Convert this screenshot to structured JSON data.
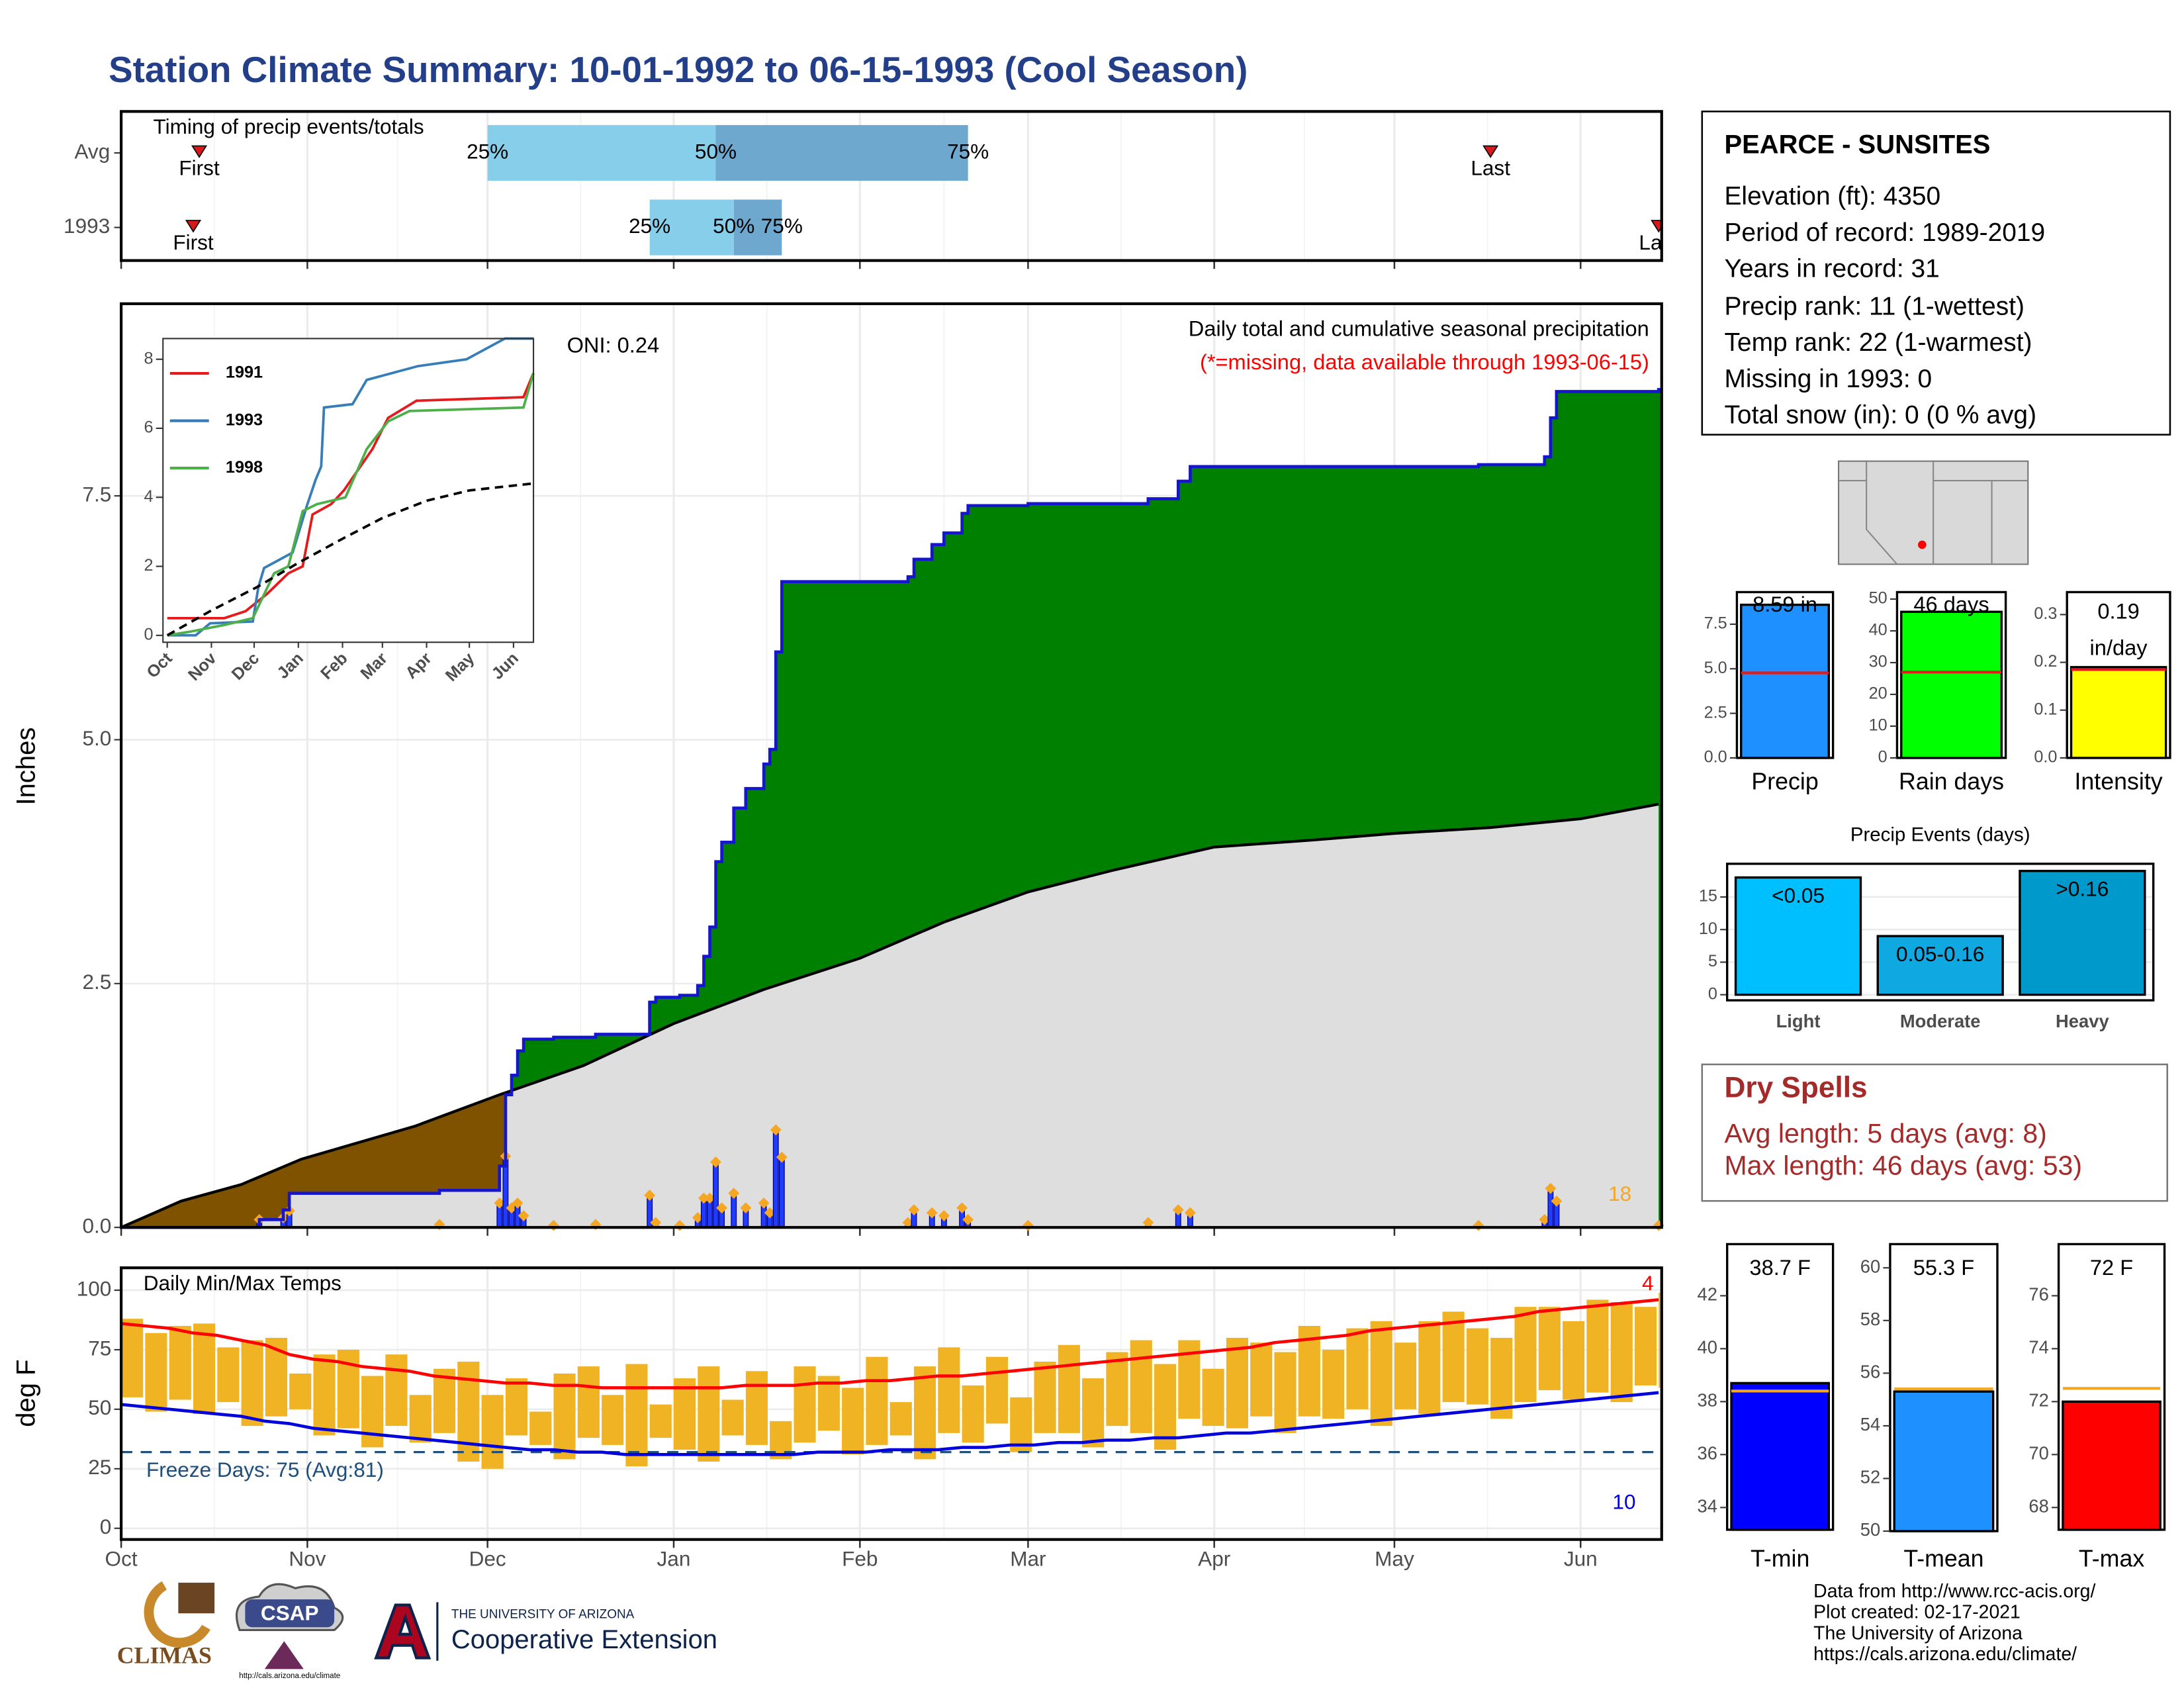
{
  "page_title": "Station Climate Summary: 10-01-1992 to 06-15-1993 (Cool Season)",
  "station": {
    "title": "PEARCE - SUNSITES",
    "lines": [
      "Elevation (ft): 4350",
      "Period of record: 1989-2019",
      "Years in record: 31",
      "Precip rank: 11 (1-wettest)",
      "Temp rank: 22 (1-warmest)",
      "Missing in 1993: 0",
      "Total snow (in): 0 (0 % avg)"
    ]
  },
  "dry_spells": {
    "title": "Dry Spells",
    "lines": [
      "Avg length: 5 days (avg: 8)",
      "Max length: 46 days (avg: 53)"
    ]
  },
  "footer": {
    "credits": [
      "Data from http://www.rcc-acis.org/",
      "Plot created: 02-17-2021",
      "The University of Arizona",
      "https://cals.arizona.edu/climate/"
    ],
    "logos": [
      "CLIMAS",
      "CSAP",
      "http://cals.arizona.edu/climate",
      "THE UNIVERSITY OF ARIZONA",
      "Cooperative Extension"
    ]
  },
  "chart_data": [
    {
      "type": "timing",
      "title": "Timing of precip events/totals",
      "categories": [
        "Avg",
        "1993"
      ],
      "first": [
        13,
        12
      ],
      "p25": [
        61,
        88
      ],
      "p50": [
        99,
        102
      ],
      "p75": [
        141,
        110
      ],
      "last": [
        228,
        256
      ],
      "first_label": "First",
      "last_label": "Last",
      "p25_label": "25%",
      "p50_label": "50%",
      "p75_label": "75%",
      "colors": [
        "#87ceeb",
        "#6fa8cf"
      ],
      "xlim": [
        0,
        256.5
      ]
    },
    {
      "type": "cumulative_precip",
      "title": "Daily total and cumulative seasonal precipitation",
      "subtitle": "(*=missing, data available through 1993-06-15)",
      "annotation": "ONI: 0.24",
      "count": 18,
      "ylabel": "Inches",
      "xlim": [
        0,
        256.5
      ],
      "ylim": [
        0,
        9.47
      ],
      "yticks": [
        {
          "value": 0,
          "label": "0.0"
        },
        2.5,
        {
          "value": 5,
          "label": "5.0"
        },
        7.5
      ],
      "grid": true,
      "daily": {
        "color": "#1f3cff",
        "x": [
          23,
          27,
          28,
          53,
          63,
          64,
          65,
          66,
          67,
          72,
          79,
          88,
          89,
          93,
          96,
          97,
          98,
          99,
          100,
          102,
          104,
          107,
          108,
          109,
          110,
          131,
          132,
          135,
          137,
          140,
          141,
          151,
          171,
          176,
          178,
          226,
          237,
          238,
          239,
          256
        ],
        "values": [
          0.08,
          0.1,
          0.17,
          0.03,
          0.25,
          0.73,
          0.2,
          0.25,
          0.12,
          0.02,
          0.03,
          0.33,
          0.05,
          0.02,
          0.1,
          0.3,
          0.3,
          0.67,
          0.2,
          0.35,
          0.2,
          0.25,
          0.15,
          1.0,
          0.72,
          0.05,
          0.18,
          0.15,
          0.12,
          0.2,
          0.08,
          0.02,
          0.05,
          0.18,
          0.15,
          0.02,
          0.08,
          0.4,
          0.27,
          0.02
        ]
      },
      "average": {
        "color": "#000000",
        "x": [
          0,
          10,
          20,
          30,
          49,
          63,
          77,
          92,
          107,
          123,
          137,
          151,
          165,
          182,
          198,
          212,
          228,
          243,
          256
        ],
        "values": [
          0,
          0.27,
          0.44,
          0.7,
          1.04,
          1.36,
          1.66,
          2.09,
          2.44,
          2.76,
          3.13,
          3.44,
          3.66,
          3.9,
          3.97,
          4.04,
          4.1,
          4.19,
          4.34
        ]
      },
      "colors": {
        "above": "#008000",
        "below": "#7f5200",
        "base": "#dedede",
        "line": "#1515d0",
        "marker": "#f5a623"
      }
    },
    {
      "type": "line",
      "xlim": [
        -3,
        257
      ],
      "ylim": [
        -0.2,
        8.6
      ],
      "yticks": [
        0,
        2,
        4,
        6,
        8
      ],
      "xticks": [
        {
          "value": 0,
          "label": "Oct"
        },
        {
          "value": 31,
          "label": "Nov"
        },
        {
          "value": 61,
          "label": "Dec"
        },
        {
          "value": 92,
          "label": "Jan"
        },
        {
          "value": 123,
          "label": "Feb"
        },
        {
          "value": 151,
          "label": "Mar"
        },
        {
          "value": 182,
          "label": "Apr"
        },
        {
          "value": 212,
          "label": "May"
        },
        {
          "value": 243,
          "label": "Jun"
        }
      ],
      "series": [
        {
          "name": "1991",
          "color": "#e41a1c",
          "x": [
            0,
            40,
            55,
            70,
            85,
            95,
            102,
            115,
            124,
            144,
            155,
            175,
            250,
            257
          ],
          "values": [
            0.5,
            0.5,
            0.7,
            1.2,
            1.8,
            2.0,
            3.5,
            3.8,
            4.2,
            5.4,
            6.3,
            6.8,
            6.9,
            7.6
          ]
        },
        {
          "name": "1993",
          "color": "#377eb8",
          "x": [
            0,
            20,
            30,
            60,
            64,
            68,
            88,
            98,
            104,
            108,
            110,
            130,
            140,
            176,
            210,
            237,
            257
          ],
          "values": [
            0,
            0,
            0.35,
            0.4,
            1.4,
            1.95,
            2.4,
            3.75,
            4.5,
            4.9,
            6.6,
            6.7,
            7.4,
            7.8,
            8.0,
            8.6,
            8.6
          ]
        },
        {
          "name": "1998",
          "color": "#4daf4a",
          "x": [
            0,
            15,
            40,
            60,
            75,
            85,
            95,
            105,
            125,
            140,
            155,
            170,
            250,
            257
          ],
          "values": [
            0,
            0.1,
            0.3,
            0.5,
            1.8,
            2.0,
            3.6,
            3.8,
            4.0,
            5.4,
            6.2,
            6.5,
            6.6,
            7.6
          ]
        },
        {
          "color": "#000000",
          "linestyle": "dashed",
          "x": [
            0,
            30,
            63,
            92,
            123,
            151,
            182,
            212,
            257
          ],
          "values": [
            0,
            0.7,
            1.4,
            2.1,
            2.8,
            3.4,
            3.9,
            4.2,
            4.4
          ]
        }
      ]
    },
    {
      "type": "temp_range",
      "title": "Daily Min/Max Temps",
      "ylabel": "deg F",
      "freeze_label": "Freeze Days: 75 (Avg:81)",
      "freeze": 32,
      "min_count": 10,
      "max_count": 4,
      "xlim": [
        0,
        256.5
      ],
      "ylim": [
        -4.7,
        109.4
      ],
      "yticks": [
        0,
        25,
        50,
        75,
        100
      ],
      "xticks": [
        {
          "value": 0,
          "label": "Oct"
        },
        {
          "value": 31,
          "label": "Nov"
        },
        {
          "value": 61,
          "label": "Dec"
        },
        {
          "value": 92,
          "label": "Jan"
        },
        {
          "value": 123,
          "label": "Feb"
        },
        {
          "value": 151,
          "label": "Mar"
        },
        {
          "value": 182,
          "label": "Apr"
        },
        {
          "value": 212,
          "label": "May"
        },
        {
          "value": 243,
          "label": "Jun"
        }
      ],
      "x": [
        0,
        4,
        8,
        12,
        16,
        20,
        24,
        28,
        32,
        36,
        40,
        44,
        48,
        52,
        56,
        60,
        64,
        68,
        72,
        76,
        80,
        84,
        88,
        92,
        96,
        100,
        104,
        108,
        112,
        116,
        120,
        124,
        128,
        132,
        136,
        140,
        144,
        148,
        152,
        156,
        160,
        164,
        168,
        172,
        176,
        180,
        184,
        188,
        192,
        196,
        200,
        204,
        208,
        212,
        216,
        220,
        224,
        228,
        232,
        236,
        240,
        244,
        248,
        252,
        256
      ],
      "tmax": [
        88,
        82,
        85,
        86,
        76,
        79,
        80,
        65,
        73,
        75,
        64,
        73,
        56,
        67,
        70,
        56,
        63,
        49,
        65,
        68,
        56,
        69,
        52,
        63,
        68,
        54,
        66,
        45,
        68,
        64,
        59,
        72,
        53,
        68,
        76,
        60,
        72,
        55,
        70,
        77,
        63,
        74,
        79,
        69,
        79,
        67,
        80,
        78,
        74,
        85,
        75,
        84,
        87,
        78,
        87,
        91,
        84,
        80,
        93,
        93,
        87,
        96,
        95,
        93,
        99
      ],
      "tmin": [
        55,
        49,
        54,
        48,
        53,
        43,
        47,
        50,
        39,
        42,
        34,
        43,
        36,
        40,
        28,
        25,
        39,
        35,
        29,
        38,
        35,
        26,
        38,
        33,
        28,
        39,
        35,
        29,
        36,
        41,
        31,
        35,
        39,
        29,
        40,
        36,
        44,
        32,
        40,
        40,
        34,
        43,
        40,
        33,
        46,
        43,
        42,
        47,
        40,
        47,
        46,
        50,
        43,
        50,
        48,
        53,
        52,
        46,
        53,
        58,
        54,
        57,
        53,
        60,
        59
      ],
      "avg_max": [
        86,
        85,
        84,
        82,
        81,
        79,
        77,
        73,
        71,
        70,
        68,
        67,
        66,
        64,
        63,
        62,
        61,
        61,
        60,
        60,
        59,
        59,
        59,
        59,
        59,
        59,
        60,
        60,
        60,
        61,
        61,
        62,
        62,
        63,
        64,
        64,
        65,
        66,
        67,
        68,
        69,
        70,
        71,
        72,
        73,
        74,
        75,
        76,
        78,
        79,
        80,
        81,
        83,
        84,
        85,
        86,
        87,
        88,
        89,
        91,
        92,
        93,
        94,
        95,
        96
      ],
      "avg_min": [
        52,
        51,
        50,
        49,
        48,
        47,
        45,
        44,
        42,
        41,
        40,
        39,
        38,
        37,
        36,
        35,
        34,
        33,
        33,
        32,
        32,
        31,
        31,
        31,
        31,
        31,
        31,
        31,
        31,
        32,
        32,
        32,
        33,
        33,
        33,
        34,
        34,
        35,
        35,
        36,
        36,
        37,
        37,
        38,
        38,
        39,
        40,
        40,
        41,
        42,
        43,
        44,
        45,
        46,
        47,
        48,
        49,
        50,
        51,
        52,
        53,
        54,
        55,
        56,
        57
      ],
      "colors": {
        "bar": "#f0b323",
        "max": "#ff0000",
        "min": "#0000dd",
        "freeze": "#1f4e79"
      }
    },
    {
      "type": "summary_bar",
      "xlabel": "Precip",
      "values": [
        8.59
      ],
      "value_labels": [
        "8.59 in"
      ],
      "average": 4.77,
      "color": "#1e90ff",
      "avg_color": "#e41a1c",
      "ylim": [
        0,
        9.3
      ],
      "yticks": [
        {
          "value": 0,
          "label": "0.0"
        },
        2.5,
        {
          "value": 5,
          "label": "5.0"
        },
        7.5
      ]
    },
    {
      "type": "summary_bar",
      "xlabel": "Rain days",
      "values": [
        46
      ],
      "value_labels": [
        "46 days"
      ],
      "average": 27,
      "color": "#00ff00",
      "avg_color": "#e41a1c",
      "ylim": [
        0,
        52.2
      ],
      "yticks": [
        0,
        10,
        20,
        30,
        40,
        50
      ]
    },
    {
      "type": "summary_bar",
      "xlabel": "Intensity",
      "values": [
        0.19
      ],
      "value_labels": [
        "0.19"
      ],
      "unit": "in/day",
      "average": 0.185,
      "color": "#ffff00",
      "avg_color": "#e41a1c",
      "ylim": [
        0,
        0.347
      ],
      "yticks": [
        {
          "value": 0,
          "label": "0.0"
        },
        0.1,
        0.2,
        0.3
      ]
    },
    {
      "type": "bar",
      "title": "Precip Events (days)",
      "categories": [
        "Light",
        "Moderate",
        "Heavy"
      ],
      "values": [
        18,
        9,
        19
      ],
      "bin_labels": [
        "<0.05",
        "0.05-0.16",
        ">0.16"
      ],
      "colors": [
        "#00bfff",
        "#10a8e0",
        "#0099cc"
      ],
      "ylim": [
        -0.86,
        20.1
      ],
      "yticks": [
        0,
        5,
        10,
        15
      ],
      "grid": true
    },
    {
      "type": "summary_bar",
      "xlabel": "T-min",
      "values": [
        38.7
      ],
      "value_labels": [
        "38.7 F"
      ],
      "average": 38.4,
      "color": "#0000ff",
      "avg_color": "#f5a623",
      "ylim": [
        33.16,
        43.95
      ],
      "yticks": [
        34,
        36,
        38,
        40,
        42
      ]
    },
    {
      "type": "summary_bar",
      "xlabel": "T-mean",
      "values": [
        55.3
      ],
      "value_labels": [
        "55.3 F"
      ],
      "average": 55.4,
      "color": "#1e90ff",
      "avg_color": "#f5a623",
      "ylim": [
        50,
        60.9
      ],
      "yticks": [
        50,
        52,
        54,
        56,
        58,
        60
      ]
    },
    {
      "type": "summary_bar",
      "xlabel": "T-max",
      "values": [
        72
      ],
      "value_labels": [
        "72 F"
      ],
      "average": 72.5,
      "color": "#ff0000",
      "avg_color": "#f5a623",
      "ylim": [
        67.16,
        77.95
      ],
      "yticks": [
        68,
        70,
        72,
        74,
        76
      ]
    }
  ]
}
